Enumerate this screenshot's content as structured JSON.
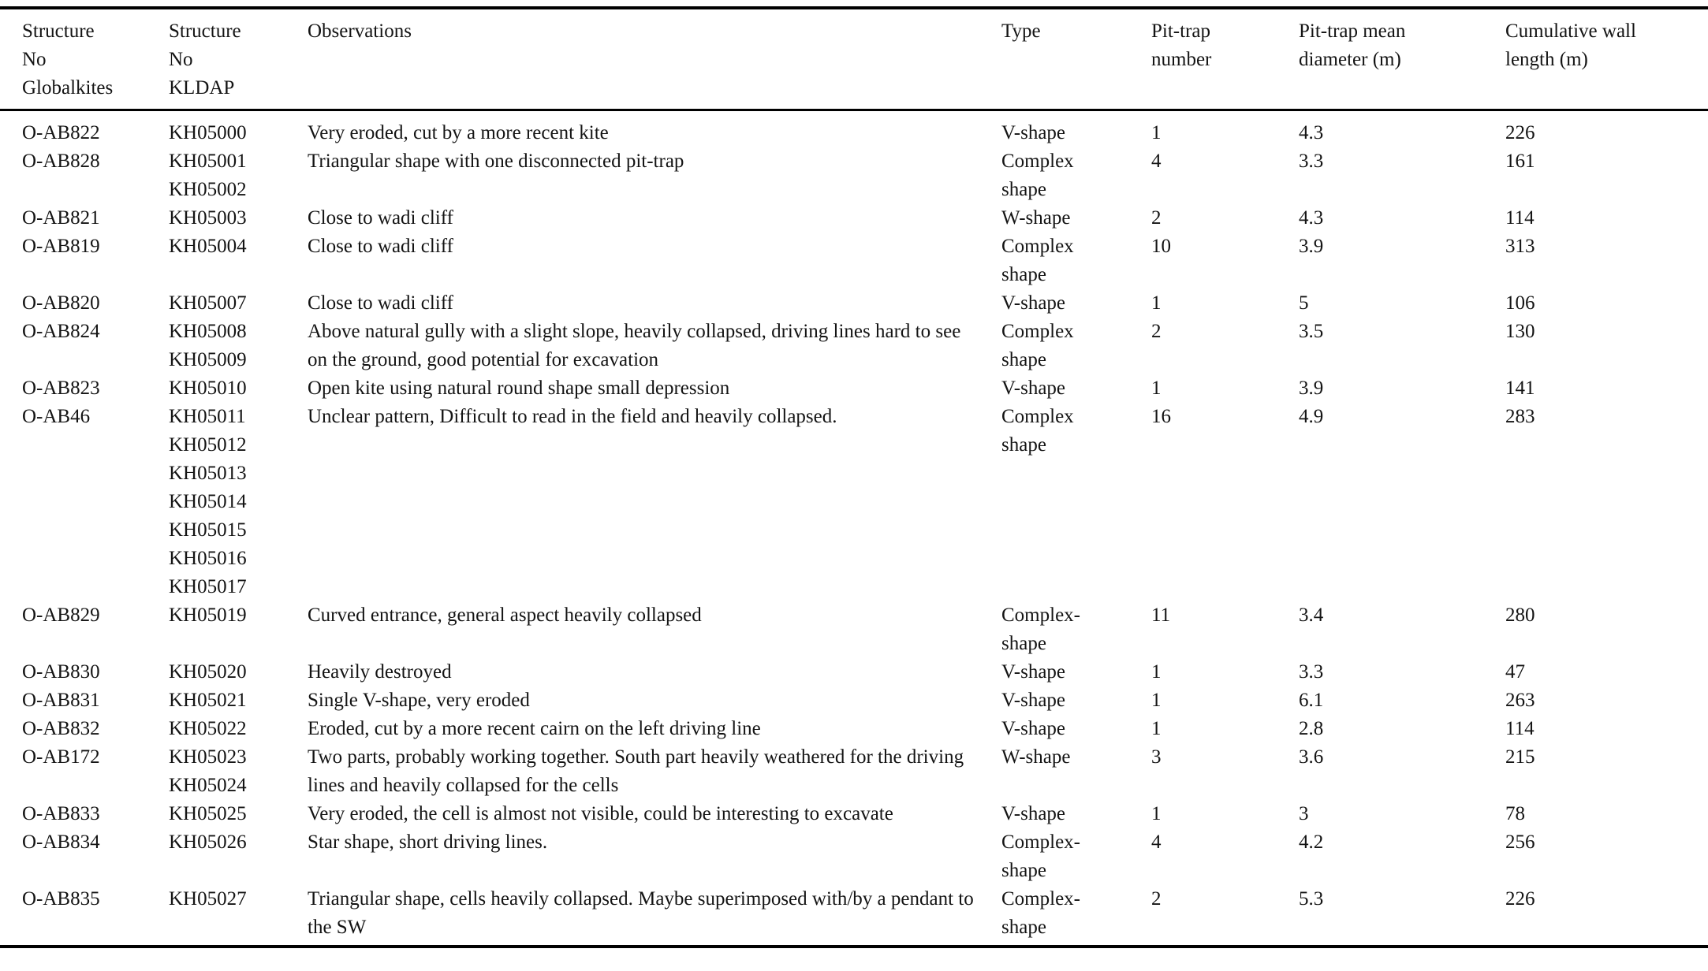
{
  "table": {
    "columns": [
      {
        "label": "Structure\nNo\nGlobalkites"
      },
      {
        "label": "Structure\nNo\nKLDAP"
      },
      {
        "label": "Observations"
      },
      {
        "label": "Type"
      },
      {
        "label": "Pit-trap\nnumber"
      },
      {
        "label": "Pit-trap mean\ndiameter (m)"
      },
      {
        "label": "Cumulative wall\nlength (m)"
      }
    ],
    "rows": [
      {
        "globalkites": "O-AB822",
        "kldap": "KH05000",
        "observations": "Very eroded, cut by a more recent kite",
        "type": "V-shape",
        "pit_trap_number": "1",
        "pit_trap_mean_diameter_m": "4.3",
        "cumulative_wall_length_m": "226"
      },
      {
        "globalkites": "O-AB828",
        "kldap": "KH05001\nKH05002",
        "observations": "Triangular shape with one disconnected pit-trap",
        "type": "Complex\nshape",
        "pit_trap_number": "4",
        "pit_trap_mean_diameter_m": "3.3",
        "cumulative_wall_length_m": "161"
      },
      {
        "globalkites": "O-AB821",
        "kldap": "KH05003",
        "observations": "Close to wadi cliff",
        "type": "W-shape",
        "pit_trap_number": "2",
        "pit_trap_mean_diameter_m": "4.3",
        "cumulative_wall_length_m": "114"
      },
      {
        "globalkites": "O-AB819",
        "kldap": "KH05004",
        "observations": "Close to wadi cliff",
        "type": "Complex\nshape",
        "pit_trap_number": "10",
        "pit_trap_mean_diameter_m": "3.9",
        "cumulative_wall_length_m": "313"
      },
      {
        "globalkites": "O-AB820",
        "kldap": "KH05007",
        "observations": "Close to wadi cliff",
        "type": "V-shape",
        "pit_trap_number": "1",
        "pit_trap_mean_diameter_m": "5",
        "cumulative_wall_length_m": "106"
      },
      {
        "globalkites": "O-AB824",
        "kldap": "KH05008\nKH05009",
        "observations": "Above natural gully with a slight slope, heavily collapsed, driving lines hard to see on the ground, good potential for excavation",
        "type": "Complex\nshape",
        "pit_trap_number": "2",
        "pit_trap_mean_diameter_m": "3.5",
        "cumulative_wall_length_m": "130"
      },
      {
        "globalkites": "O-AB823",
        "kldap": "KH05010",
        "observations": "Open kite using natural round shape small depression",
        "type": "V-shape",
        "pit_trap_number": "1",
        "pit_trap_mean_diameter_m": "3.9",
        "cumulative_wall_length_m": "141"
      },
      {
        "globalkites": "O-AB46",
        "kldap": "KH05011\nKH05012\nKH05013\nKH05014\nKH05015\nKH05016\nKH05017",
        "observations": "Unclear pattern, Difficult to read in the field and heavily collapsed.",
        "type": "Complex\nshape",
        "pit_trap_number": "16",
        "pit_trap_mean_diameter_m": "4.9",
        "cumulative_wall_length_m": "283"
      },
      {
        "globalkites": "O-AB829",
        "kldap": "KH05019",
        "observations": "Curved entrance, general aspect heavily collapsed",
        "type": "Complex-\nshape",
        "pit_trap_number": "11",
        "pit_trap_mean_diameter_m": "3.4",
        "cumulative_wall_length_m": "280"
      },
      {
        "globalkites": "O-AB830",
        "kldap": "KH05020",
        "observations": "Heavily destroyed",
        "type": "V-shape",
        "pit_trap_number": "1",
        "pit_trap_mean_diameter_m": "3.3",
        "cumulative_wall_length_m": "47"
      },
      {
        "globalkites": "O-AB831",
        "kldap": "KH05021",
        "observations": "Single V-shape, very eroded",
        "type": "V-shape",
        "pit_trap_number": "1",
        "pit_trap_mean_diameter_m": "6.1",
        "cumulative_wall_length_m": "263"
      },
      {
        "globalkites": "O-AB832",
        "kldap": "KH05022",
        "observations": "Eroded, cut by a more recent cairn on the left driving line",
        "type": "V-shape",
        "pit_trap_number": "1",
        "pit_trap_mean_diameter_m": "2.8",
        "cumulative_wall_length_m": "114"
      },
      {
        "globalkites": "O-AB172",
        "kldap": "KH05023\nKH05024",
        "observations": "Two parts, probably working together. South part heavily weathered for the driving lines and heavily collapsed for the cells",
        "type": "W-shape",
        "pit_trap_number": "3",
        "pit_trap_mean_diameter_m": "3.6",
        "cumulative_wall_length_m": "215"
      },
      {
        "globalkites": "O-AB833",
        "kldap": "KH05025",
        "observations": "Very eroded, the cell is almost not visible, could be interesting to excavate",
        "type": "V-shape",
        "pit_trap_number": "1",
        "pit_trap_mean_diameter_m": "3",
        "cumulative_wall_length_m": "78"
      },
      {
        "globalkites": "O-AB834",
        "kldap": "KH05026",
        "observations": "Star shape, short driving lines.",
        "type": "Complex-\nshape",
        "pit_trap_number": "4",
        "pit_trap_mean_diameter_m": "4.2",
        "cumulative_wall_length_m": "256"
      },
      {
        "globalkites": "O-AB835",
        "kldap": "KH05027",
        "observations": "Triangular shape, cells heavily collapsed. Maybe superimposed with/by a pendant to the SW",
        "type": "Complex-\nshape",
        "pit_trap_number": "2",
        "pit_trap_mean_diameter_m": "5.3",
        "cumulative_wall_length_m": "226"
      }
    ]
  }
}
